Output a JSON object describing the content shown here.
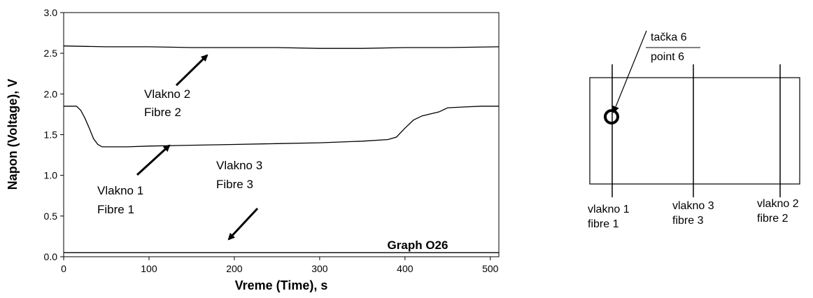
{
  "chart_data": {
    "type": "line",
    "title": "",
    "xlabel": "Vreme (Time), s",
    "ylabel": "Napon (Voltage), V",
    "xlim": [
      0,
      510
    ],
    "ylim": [
      0.0,
      3.0
    ],
    "x_ticks": [
      "0",
      "100",
      "200",
      "300",
      "400",
      "500"
    ],
    "y_ticks": [
      "0.0",
      "0.5",
      "1.0",
      "1.5",
      "2.0",
      "2.5",
      "3.0"
    ],
    "grid": false,
    "series": [
      {
        "name": "Vlakno 2 / Fibre 2",
        "x": [
          0,
          50,
          100,
          150,
          200,
          250,
          300,
          350,
          400,
          450,
          510
        ],
        "y": [
          2.59,
          2.58,
          2.58,
          2.57,
          2.57,
          2.57,
          2.56,
          2.56,
          2.57,
          2.57,
          2.58
        ]
      },
      {
        "name": "Vlakno 1 / Fibre 1",
        "x": [
          0,
          15,
          20,
          25,
          30,
          35,
          40,
          45,
          50,
          75,
          100,
          150,
          200,
          250,
          300,
          350,
          380,
          390,
          400,
          410,
          420,
          440,
          450,
          470,
          490,
          510
        ],
        "y": [
          1.85,
          1.85,
          1.8,
          1.7,
          1.58,
          1.45,
          1.38,
          1.35,
          1.35,
          1.35,
          1.36,
          1.37,
          1.38,
          1.39,
          1.4,
          1.42,
          1.44,
          1.47,
          1.58,
          1.68,
          1.73,
          1.78,
          1.83,
          1.84,
          1.85,
          1.85
        ]
      },
      {
        "name": "Vlakno 3 / Fibre 3",
        "x": [
          0,
          100,
          200,
          300,
          400,
          510
        ],
        "y": [
          0.05,
          0.05,
          0.05,
          0.05,
          0.05,
          0.05
        ]
      }
    ],
    "annotations": [
      {
        "line1": "Vlakno 2",
        "line2": "Fibre 2"
      },
      {
        "line1": "Vlakno 1",
        "line2": "Fibre 1"
      },
      {
        "line1": "Vlakno 3",
        "line2": "Fibre 3"
      }
    ],
    "graph_label": "Graph O26"
  },
  "diagram": {
    "point_label_top": "tačka 6",
    "point_label_bottom": "point 6",
    "fibres": [
      {
        "line1": "vlakno 1",
        "line2": "fibre 1"
      },
      {
        "line1": "vlakno 3",
        "line2": "fibre 3"
      },
      {
        "line1": "vlakno 2",
        "line2": "fibre 2"
      }
    ]
  }
}
